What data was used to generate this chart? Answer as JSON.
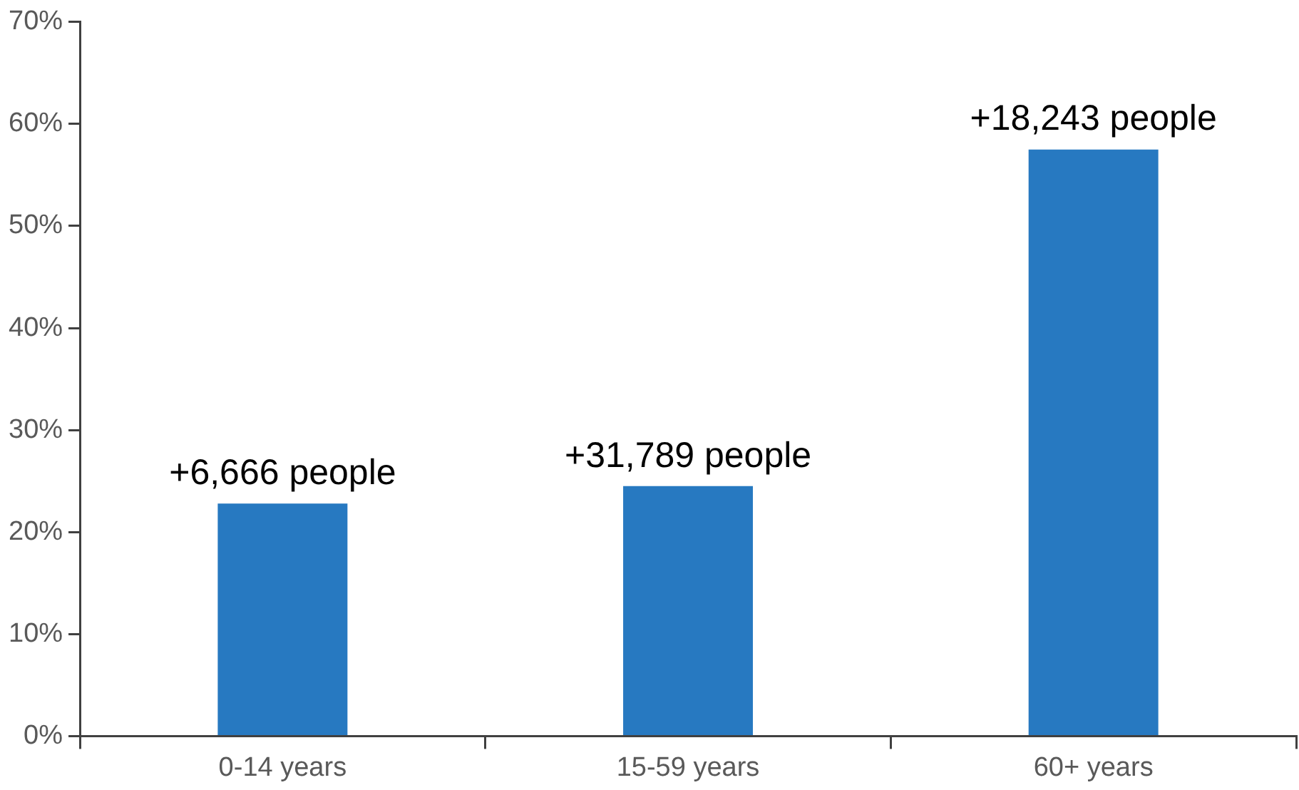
{
  "chart_data": {
    "type": "bar",
    "categories": [
      "0-14 years",
      "15-59 years",
      "60+ years"
    ],
    "values": [
      22.8,
      24.5,
      57.5
    ],
    "color": "#2779c1",
    "annotations": [
      {
        "text": "+6,666 people",
        "x": "0-14 years",
        "y": 22.8
      },
      {
        "text": "+31,789 people",
        "x": "15-59 years",
        "y": 24.5
      },
      {
        "text": "+18,243 people",
        "x": "60+ years",
        "y": 57.5
      }
    ],
    "ylim": [
      0,
      70
    ],
    "yticks": [
      {
        "value": 0,
        "label": "0%"
      },
      {
        "value": 10,
        "label": "10%"
      },
      {
        "value": 20,
        "label": "20%"
      },
      {
        "value": 30,
        "label": "30%"
      },
      {
        "value": 40,
        "label": "40%"
      },
      {
        "value": 50,
        "label": "50%"
      },
      {
        "value": 60,
        "label": "60%"
      },
      {
        "value": 70,
        "label": "70%"
      }
    ],
    "grid": false,
    "legend": false
  }
}
